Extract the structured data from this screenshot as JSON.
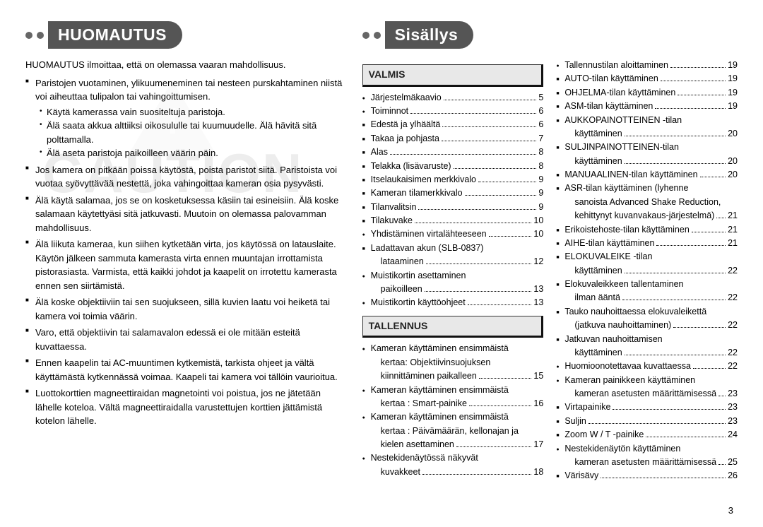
{
  "page_number": "3",
  "watermark_text": "CAUTION",
  "left": {
    "banner": "HUOMAUTUS",
    "intro": "HUOMAUTUS ilmoittaa, että on olemassa vaaran mahdollisuus.",
    "b1": "Paristojen vuotaminen, ylikuumeneminen tai nesteen purskahtaminen niistä voi aiheuttaa tulipalon tai vahingoittumisen.",
    "d1": "Käytä kamerassa vain suositeltuja paristoja.",
    "d2": "Älä saata akkua alttiiksi oikosululle tai kuumuudelle. Älä hävitä sitä polttamalla.",
    "d3": "Älä aseta paristoja paikoilleen väärin päin.",
    "b2": "Jos kamera on pitkään poissa käytöstä, poista paristot siitä. Paristoista voi vuotaa syövyttävää nestettä, joka vahingoittaa kameran osia pysyvästi.",
    "b3": "Älä käytä salamaa, jos se on kosketuksessa käsiin tai esineisiin. Älä koske salamaan käytettyäsi sitä jatkuvasti. Muutoin on olemassa palovamman mahdollisuus.",
    "b4": "Älä liikuta kameraa, kun siihen kytketään virta, jos käytössä on latauslaite. Käytön jälkeen sammuta kamerasta virta ennen muuntajan irrottamista pistorasiasta. Varmista, että kaikki johdot ja kaapelit on irrotettu kamerasta ennen sen siirtämistä.",
    "b5": "Älä koske objektiiviin tai sen suojukseen, sillä kuvien laatu voi heiketä tai kamera voi toimia väärin.",
    "b6": "Varo, että objektiivin tai salamavalon edessä ei ole mitään esteitä kuvattaessa.",
    "b7": "Ennen kaapelin tai AC-muuntimen kytkemistä, tarkista ohjeet ja vältä käyttämästä kytkennässä voimaa. Kaapeli tai kamera voi tällöin vaurioitua.",
    "b8": "Luottokorttien magneettiraidan magnetointi voi poistua, jos ne jätetään lähelle koteloa. Vältä magneettiraidalla varustettujen korttien jättämistä kotelon lähelle."
  },
  "right": {
    "banner": "Sisällys",
    "sect_valmis": "VALMIS",
    "sect_tallennus": "TALLENNUS",
    "col1": [
      {
        "b": "rb",
        "t": "Järjestelmäkaavio",
        "p": "5"
      },
      {
        "b": "rb",
        "t": "Toiminnot",
        "p": "6"
      },
      {
        "b": "sq",
        "t": "Edestä ja ylhäältä",
        "p": "6"
      },
      {
        "b": "sq",
        "t": "Takaa ja pohjasta",
        "p": "7"
      },
      {
        "b": "sq",
        "t": "Alas",
        "p": "8"
      },
      {
        "b": "sq",
        "t": "Telakka (lisävaruste)",
        "p": "8"
      },
      {
        "b": "sq",
        "t": "Itselaukaisimen merkkivalo",
        "p": "9"
      },
      {
        "b": "sq",
        "t": "Kameran tilamerkkivalo",
        "p": "9"
      },
      {
        "b": "sq",
        "t": "Tilanvalitsin",
        "p": "9"
      },
      {
        "b": "sq",
        "t": "Tilakuvake",
        "p": "10"
      },
      {
        "b": "rb",
        "t": "Yhdistäminen virtalähteeseen",
        "p": "10"
      },
      {
        "b": "sq",
        "t": "Ladattavan akun (SLB-0837)",
        "p": "",
        "nolead": true
      },
      {
        "b": "",
        "t": "lataaminen",
        "p": "12",
        "cont": true
      },
      {
        "b": "rb",
        "t": "Muistikortin asettaminen",
        "p": "",
        "nolead": true
      },
      {
        "b": "",
        "t": "paikoilleen",
        "p": "13",
        "cont": true
      },
      {
        "b": "rb",
        "t": "Muistikortin käyttöohjeet",
        "p": "13"
      }
    ],
    "col1b": [
      {
        "b": "rb",
        "t": "Kameran käyttäminen ensimmäistä",
        "p": "",
        "nolead": true
      },
      {
        "b": "",
        "t": "kertaa: Objektiivinsuojuksen",
        "p": "",
        "nolead": true,
        "cont": true
      },
      {
        "b": "",
        "t": "kiinnittäminen paikalleen",
        "p": "15",
        "cont": true
      },
      {
        "b": "rb",
        "t": "Kameran käyttäminen ensimmäistä",
        "p": "",
        "nolead": true
      },
      {
        "b": "",
        "t": "kertaa : Smart-painike",
        "p": "16",
        "cont": true
      },
      {
        "b": "rb",
        "t": "Kameran käyttäminen ensimmäistä",
        "p": "",
        "nolead": true
      },
      {
        "b": "",
        "t": "kertaa : Päivämäärän, kellonajan ja",
        "p": "",
        "nolead": true,
        "cont": true
      },
      {
        "b": "",
        "t": "kielen asettaminen",
        "p": "17",
        "cont": true
      },
      {
        "b": "rb",
        "t": "Nestekidenäytössä näkyvät",
        "p": "",
        "nolead": true
      },
      {
        "b": "",
        "t": "kuvakkeet",
        "p": "18",
        "cont": true
      }
    ],
    "col2": [
      {
        "b": "rb",
        "t": "Tallennustilan aloittaminen",
        "p": "19"
      },
      {
        "b": "sq",
        "t": "AUTO-tilan käyttäminen",
        "p": "19"
      },
      {
        "b": "sq",
        "t": "OHJELMA-tilan käyttäminen",
        "p": "19"
      },
      {
        "b": "sq",
        "t": "ASM-tilan käyttäminen",
        "p": "19"
      },
      {
        "b": "sq",
        "t": "AUKKOPAINOTTEINEN -tilan",
        "p": "",
        "nolead": true
      },
      {
        "b": "",
        "t": "käyttäminen",
        "p": "20",
        "cont": true
      },
      {
        "b": "sq",
        "t": "SULJINPAINOTTEINEN-tilan",
        "p": "",
        "nolead": true
      },
      {
        "b": "",
        "t": "käyttäminen",
        "p": "20",
        "cont": true
      },
      {
        "b": "sq",
        "t": "MANUAALINEN-tilan käyttäminen",
        "p": "20"
      },
      {
        "b": "sq",
        "t": "ASR-tilan käyttäminen (lyhenne",
        "p": "",
        "nolead": true
      },
      {
        "b": "",
        "t": "sanoista Advanced Shake Reduction,",
        "p": "",
        "nolead": true,
        "cont": true
      },
      {
        "b": "",
        "t": "kehittynyt kuvanvakaus-järjestelmä)",
        "p": "21",
        "cont": true
      },
      {
        "b": "sq",
        "t": "Erikoistehoste-tilan käyttäminen",
        "p": "21"
      },
      {
        "b": "sq",
        "t": "AIHE-tilan käyttäminen",
        "p": "21"
      },
      {
        "b": "sq",
        "t": "ELOKUVALEIKE -tilan",
        "p": "",
        "nolead": true
      },
      {
        "b": "",
        "t": "käyttäminen",
        "p": "22",
        "cont": true
      },
      {
        "b": "sq",
        "t": "Elokuvaleikkeen tallentaminen",
        "p": "",
        "nolead": true
      },
      {
        "b": "",
        "t": "ilman ääntä",
        "p": "22",
        "cont": true
      },
      {
        "b": "sq",
        "t": "Tauko nauhoittaessa elokuvaleikettä",
        "p": "",
        "nolead": true
      },
      {
        "b": "",
        "t": "(jatkuva nauhoittaminen)",
        "p": "22",
        "cont": true
      },
      {
        "b": "sq",
        "t": "Jatkuvan nauhoittamisen",
        "p": "",
        "nolead": true
      },
      {
        "b": "",
        "t": "käyttäminen",
        "p": "22",
        "cont": true
      },
      {
        "b": "rb",
        "t": "Huomioonotettavaa kuvattaessa",
        "p": "22"
      },
      {
        "b": "rb",
        "t": "Kameran painikkeen käyttäminen",
        "p": "",
        "nolead": true
      },
      {
        "b": "",
        "t": "kameran asetusten määrittämisessä",
        "p": "23",
        "cont": true
      },
      {
        "b": "sq",
        "t": "Virtapainike",
        "p": "23"
      },
      {
        "b": "sq",
        "t": "Suljin",
        "p": "23"
      },
      {
        "b": "sq",
        "t": "Zoom W / T -painike",
        "p": "24"
      },
      {
        "b": "rb",
        "t": "Nestekidenäytön käyttäminen",
        "p": "",
        "nolead": true
      },
      {
        "b": "",
        "t": "kameran asetusten määrittämisessä",
        "p": "25",
        "cont": true
      },
      {
        "b": "sq",
        "t": "Värisävy",
        "p": "26"
      }
    ]
  }
}
